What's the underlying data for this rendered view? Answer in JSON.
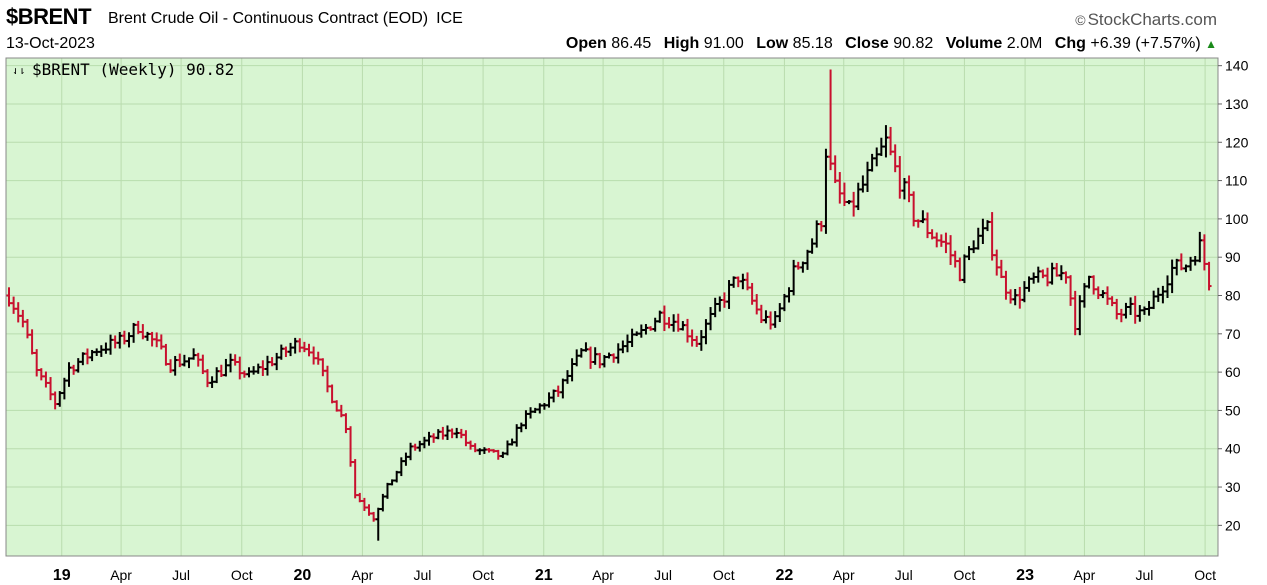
{
  "header": {
    "symbol": "$BRENT",
    "title": "Brent Crude Oil - Continuous Contract (EOD)",
    "exchange": "ICE",
    "brand": "StockCharts.com",
    "date": "13-Oct-2023",
    "open_label": "Open",
    "open": "86.45",
    "high_label": "High",
    "high": "91.00",
    "low_label": "Low",
    "low": "85.18",
    "close_label": "Close",
    "close": "90.82",
    "volume_label": "Volume",
    "volume": "2.0M",
    "chg_label": "Chg",
    "chg": "+6.39 (+7.57%)"
  },
  "chart_data": {
    "type": "ohlc-bar",
    "legend": "$BRENT (Weekly) 90.82",
    "frequency": "weekly",
    "ylim": [
      12,
      142
    ],
    "yticks": [
      20,
      30,
      40,
      50,
      60,
      70,
      80,
      90,
      100,
      110,
      120,
      130,
      140
    ],
    "x_range": [
      "2018-10-13",
      "2023-10-13"
    ],
    "xticks": [
      {
        "label": "19",
        "date": "2019-01-01",
        "year": true
      },
      {
        "label": "Apr",
        "date": "2019-04-01"
      },
      {
        "label": "Jul",
        "date": "2019-07-01"
      },
      {
        "label": "Oct",
        "date": "2019-10-01"
      },
      {
        "label": "20",
        "date": "2020-01-01",
        "year": true
      },
      {
        "label": "Apr",
        "date": "2020-04-01"
      },
      {
        "label": "Jul",
        "date": "2020-07-01"
      },
      {
        "label": "Oct",
        "date": "2020-10-01"
      },
      {
        "label": "21",
        "date": "2021-01-01",
        "year": true
      },
      {
        "label": "Apr",
        "date": "2021-04-01"
      },
      {
        "label": "Jul",
        "date": "2021-07-01"
      },
      {
        "label": "Oct",
        "date": "2021-10-01"
      },
      {
        "label": "22",
        "date": "2022-01-01",
        "year": true
      },
      {
        "label": "Apr",
        "date": "2022-04-01"
      },
      {
        "label": "Jul",
        "date": "2022-07-01"
      },
      {
        "label": "Oct",
        "date": "2022-10-01"
      },
      {
        "label": "23",
        "date": "2023-01-01",
        "year": true
      },
      {
        "label": "Apr",
        "date": "2023-04-01"
      },
      {
        "label": "Jul",
        "date": "2023-07-01"
      },
      {
        "label": "Oct",
        "date": "2023-10-01"
      }
    ],
    "close_path": [
      [
        "2018-10-13",
        80
      ],
      [
        "2018-11-03",
        73
      ],
      [
        "2018-11-24",
        60
      ],
      [
        "2018-12-22",
        52
      ],
      [
        "2019-01-12",
        61
      ],
      [
        "2019-02-23",
        66
      ],
      [
        "2019-03-30",
        68
      ],
      [
        "2019-04-27",
        72
      ],
      [
        "2019-05-25",
        67
      ],
      [
        "2019-06-15",
        62
      ],
      [
        "2019-07-20",
        64
      ],
      [
        "2019-08-10",
        58
      ],
      [
        "2019-09-14",
        62
      ],
      [
        "2019-10-12",
        59
      ],
      [
        "2019-11-16",
        63
      ],
      [
        "2019-12-28",
        68
      ],
      [
        "2020-01-18",
        65
      ],
      [
        "2020-02-08",
        56
      ],
      [
        "2020-03-07",
        46
      ],
      [
        "2020-03-21",
        28
      ],
      [
        "2020-04-18",
        22
      ],
      [
        "2020-05-09",
        30
      ],
      [
        "2020-06-13",
        40
      ],
      [
        "2020-07-18",
        43
      ],
      [
        "2020-08-22",
        45
      ],
      [
        "2020-09-12",
        40
      ],
      [
        "2020-10-31",
        38
      ],
      [
        "2020-11-28",
        47
      ],
      [
        "2020-12-26",
        51
      ],
      [
        "2021-01-23",
        55
      ],
      [
        "2021-02-27",
        65
      ],
      [
        "2021-03-27",
        63
      ],
      [
        "2021-04-24",
        66
      ],
      [
        "2021-05-22",
        69
      ],
      [
        "2021-06-26",
        75
      ],
      [
        "2021-07-24",
        73
      ],
      [
        "2021-08-21",
        68
      ],
      [
        "2021-09-25",
        78
      ],
      [
        "2021-10-23",
        85
      ],
      [
        "2021-11-27",
        74
      ],
      [
        "2021-12-18",
        73
      ],
      [
        "2022-01-15",
        86
      ],
      [
        "2022-02-12",
        94
      ],
      [
        "2022-02-26",
        100
      ],
      [
        "2022-03-05",
        118
      ],
      [
        "2022-03-19",
        108
      ],
      [
        "2022-04-09",
        102
      ],
      [
        "2022-05-07",
        111
      ],
      [
        "2022-06-04",
        120
      ],
      [
        "2022-06-18",
        113
      ],
      [
        "2022-07-16",
        101
      ],
      [
        "2022-08-13",
        96
      ],
      [
        "2022-09-03",
        93
      ],
      [
        "2022-09-24",
        86
      ],
      [
        "2022-10-15",
        94
      ],
      [
        "2022-11-05",
        97
      ],
      [
        "2022-11-26",
        84
      ],
      [
        "2022-12-17",
        79
      ],
      [
        "2023-01-14",
        84
      ],
      [
        "2023-02-11",
        85
      ],
      [
        "2023-03-04",
        86
      ],
      [
        "2023-03-18",
        73
      ],
      [
        "2023-04-08",
        85
      ],
      [
        "2023-04-29",
        80
      ],
      [
        "2023-05-20",
        75
      ],
      [
        "2023-06-10",
        76
      ],
      [
        "2023-07-01",
        75
      ],
      [
        "2023-07-22",
        81
      ],
      [
        "2023-08-12",
        87
      ],
      [
        "2023-09-02",
        88
      ],
      [
        "2023-09-23",
        93
      ],
      [
        "2023-10-07",
        84
      ],
      [
        "2023-10-13",
        90.82
      ]
    ],
    "pinned_extremes": [
      {
        "date": "2020-04-25",
        "low": 16
      },
      {
        "date": "2022-03-12",
        "high": 139
      },
      {
        "date": "2022-06-11",
        "high": 124
      }
    ]
  },
  "colors": {
    "plot_bg": "#d8f5d2",
    "grid": "#b9dcae",
    "up_bar": "#000000",
    "down_bar": "#c8102e",
    "axis_text": "#000000"
  }
}
